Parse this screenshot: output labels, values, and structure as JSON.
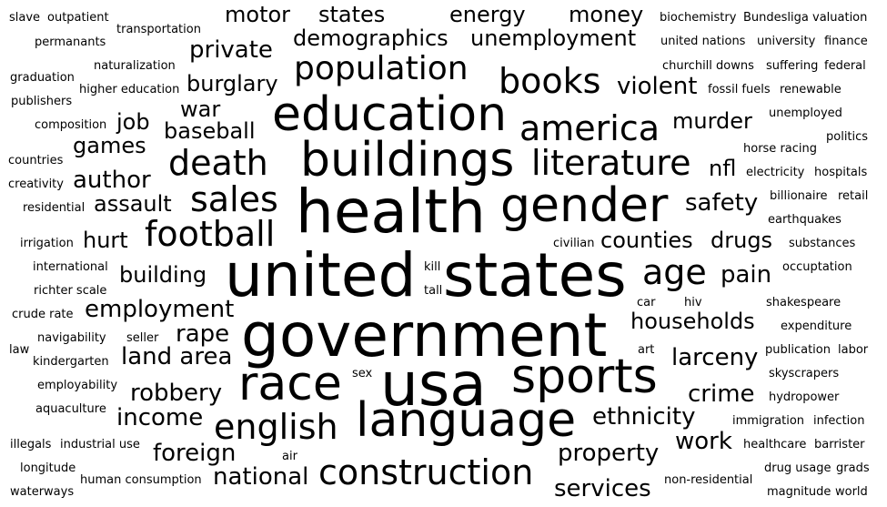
{
  "words": [
    {
      "text": "slave"
    },
    {
      "text": "outpatient"
    },
    {
      "text": "motor"
    },
    {
      "text": "states"
    },
    {
      "text": "energy"
    },
    {
      "text": "money"
    },
    {
      "text": "biochemistry"
    },
    {
      "text": "Bundesliga"
    },
    {
      "text": "valuation"
    },
    {
      "text": "transportation"
    },
    {
      "text": "permanants"
    },
    {
      "text": "demographics"
    },
    {
      "text": "unemployment"
    },
    {
      "text": "united nations"
    },
    {
      "text": "university"
    },
    {
      "text": "finance"
    },
    {
      "text": "private"
    },
    {
      "text": "naturalization"
    },
    {
      "text": "population"
    },
    {
      "text": "churchill downs"
    },
    {
      "text": "suffering"
    },
    {
      "text": "federal"
    },
    {
      "text": "graduation"
    },
    {
      "text": "books"
    },
    {
      "text": "burglary"
    },
    {
      "text": "higher education"
    },
    {
      "text": "violent"
    },
    {
      "text": "fossil fuels"
    },
    {
      "text": "renewable"
    },
    {
      "text": "publishers"
    },
    {
      "text": "education"
    },
    {
      "text": "war"
    },
    {
      "text": "unemployed"
    },
    {
      "text": "job"
    },
    {
      "text": "america"
    },
    {
      "text": "murder"
    },
    {
      "text": "composition"
    },
    {
      "text": "baseball"
    },
    {
      "text": "politics"
    },
    {
      "text": "games"
    },
    {
      "text": "horse racing"
    },
    {
      "text": "countries"
    },
    {
      "text": "death"
    },
    {
      "text": "buildings"
    },
    {
      "text": "literature"
    },
    {
      "text": "nfl"
    },
    {
      "text": "electricity"
    },
    {
      "text": "hospitals"
    },
    {
      "text": "creativity"
    },
    {
      "text": "author"
    },
    {
      "text": "billionaire"
    },
    {
      "text": "retail"
    },
    {
      "text": "sales"
    },
    {
      "text": "residential"
    },
    {
      "text": "assault"
    },
    {
      "text": "health"
    },
    {
      "text": "gender"
    },
    {
      "text": "safety"
    },
    {
      "text": "earthquakes"
    },
    {
      "text": "football"
    },
    {
      "text": "irrigation"
    },
    {
      "text": "hurt"
    },
    {
      "text": "civilian"
    },
    {
      "text": "counties"
    },
    {
      "text": "drugs"
    },
    {
      "text": "substances"
    },
    {
      "text": "age"
    },
    {
      "text": "international"
    },
    {
      "text": "kill"
    },
    {
      "text": "occuptation"
    },
    {
      "text": "united"
    },
    {
      "text": "states"
    },
    {
      "text": "building"
    },
    {
      "text": "pain"
    },
    {
      "text": "richter scale"
    },
    {
      "text": "tall"
    },
    {
      "text": "employment"
    },
    {
      "text": "car"
    },
    {
      "text": "hiv"
    },
    {
      "text": "shakespeare"
    },
    {
      "text": "crude rate"
    },
    {
      "text": "households"
    },
    {
      "text": "government"
    },
    {
      "text": "navigability"
    },
    {
      "text": "seller"
    },
    {
      "text": "rape"
    },
    {
      "text": "expenditure"
    },
    {
      "text": "law"
    },
    {
      "text": "art"
    },
    {
      "text": "publication"
    },
    {
      "text": "labor"
    },
    {
      "text": "kindergarten"
    },
    {
      "text": "land area"
    },
    {
      "text": "larceny"
    },
    {
      "text": "sex"
    },
    {
      "text": "skyscrapers"
    },
    {
      "text": "employability"
    },
    {
      "text": "robbery"
    },
    {
      "text": "race"
    },
    {
      "text": "usa"
    },
    {
      "text": "sports"
    },
    {
      "text": "crime"
    },
    {
      "text": "hydropower"
    },
    {
      "text": "aquaculture"
    },
    {
      "text": "income"
    },
    {
      "text": "english"
    },
    {
      "text": "language"
    },
    {
      "text": "ethnicity"
    },
    {
      "text": "immigration"
    },
    {
      "text": "infection"
    },
    {
      "text": "work"
    },
    {
      "text": "illegals"
    },
    {
      "text": "industrial use"
    },
    {
      "text": "foreign"
    },
    {
      "text": "air"
    },
    {
      "text": "property"
    },
    {
      "text": "healthcare"
    },
    {
      "text": "barrister"
    },
    {
      "text": "longitude"
    },
    {
      "text": "construction"
    },
    {
      "text": "national"
    },
    {
      "text": "drug usage"
    },
    {
      "text": "grads"
    },
    {
      "text": "human consumption"
    },
    {
      "text": "non-residential"
    },
    {
      "text": "waterways"
    },
    {
      "text": "services"
    },
    {
      "text": "magnitude"
    },
    {
      "text": "world"
    }
  ]
}
